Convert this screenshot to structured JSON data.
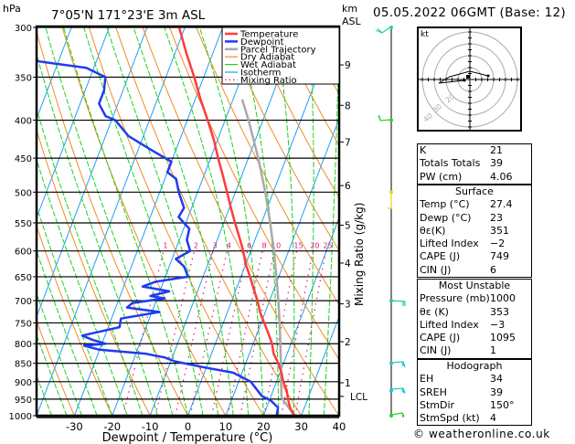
{
  "header": {
    "pressure_unit": "hPa",
    "location": "7°05'N  171°23'E  3m  ASL",
    "km_label_line1": "km",
    "km_label_line2": "ASL",
    "date_title": "05.05.2022  06GMT  (Base: 12)"
  },
  "chart_data": {
    "type": "line",
    "title": "7°05'N 171°23'E 3m ASL",
    "subtitle": "05.05.2022 06GMT (Base: 12)",
    "xlabel": "Dewpoint / Temperature (°C)",
    "ylabel": "hPa",
    "y2label": "Mixing Ratio (g/kg)",
    "xlim": [
      -40,
      40
    ],
    "ylim": [
      1000,
      300
    ],
    "skew_per_log_decade_c": 75,
    "grid": true,
    "x_ticks": [
      -30,
      -20,
      -10,
      0,
      10,
      20,
      30,
      40
    ],
    "pressure_ticks": [
      300,
      350,
      400,
      450,
      500,
      550,
      600,
      650,
      700,
      750,
      800,
      850,
      900,
      950,
      1000
    ],
    "km_ticks": [
      {
        "label": "9",
        "p": 337
      },
      {
        "label": "8",
        "p": 382
      },
      {
        "label": "7",
        "p": 428
      },
      {
        "label": "6",
        "p": 490
      },
      {
        "label": "5",
        "p": 554
      },
      {
        "label": "4",
        "p": 623
      },
      {
        "label": "3",
        "p": 707
      },
      {
        "label": "2",
        "p": 795
      },
      {
        "label": "1",
        "p": 903
      },
      {
        "label": "LCL",
        "p": 942
      }
    ],
    "mixing_ratio_labels": [
      "1",
      "2",
      "3",
      "4",
      "6",
      "8",
      "10",
      "15",
      "20",
      "25"
    ],
    "legend": {
      "position": "top-right",
      "entries": [
        {
          "label": "Temperature",
          "color": "#ff3b3b"
        },
        {
          "label": "Dewpoint",
          "color": "#1e3cf0"
        },
        {
          "label": "Parcel Trajectory",
          "color": "#aaaaaa"
        },
        {
          "label": "Dry Adiabat",
          "color": "#f08c28"
        },
        {
          "label": "Wet Adiabat",
          "color": "#1ed21e"
        },
        {
          "label": "Isotherm",
          "color": "#1ea0f0"
        },
        {
          "label": "Mixing Ratio",
          "color": "#e6147d"
        }
      ]
    },
    "series": [
      {
        "name": "Temperature",
        "color": "#ff3b3b",
        "points": [
          [
            1000,
            28.2
          ],
          [
            975,
            26.2
          ],
          [
            950,
            24.8
          ],
          [
            925,
            23.6
          ],
          [
            900,
            21.8
          ],
          [
            875,
            20.4
          ],
          [
            850,
            18.6
          ],
          [
            825,
            16.4
          ],
          [
            800,
            15.0
          ],
          [
            775,
            13.0
          ],
          [
            750,
            10.8
          ],
          [
            725,
            8.6
          ],
          [
            700,
            6.8
          ],
          [
            675,
            4.6
          ],
          [
            650,
            2.4
          ],
          [
            625,
            0.0
          ],
          [
            600,
            -2.0
          ],
          [
            575,
            -4.4
          ],
          [
            550,
            -7.0
          ],
          [
            525,
            -9.6
          ],
          [
            500,
            -12.2
          ],
          [
            475,
            -15.0
          ],
          [
            450,
            -18.0
          ],
          [
            425,
            -21.0
          ],
          [
            400,
            -24.6
          ],
          [
            375,
            -28.6
          ],
          [
            350,
            -32.5
          ],
          [
            325,
            -37.0
          ],
          [
            300,
            -41.5
          ]
        ]
      },
      {
        "name": "Dewpoint",
        "color": "#1e3cf0",
        "points": [
          [
            1000,
            23.5
          ],
          [
            975,
            23.0
          ],
          [
            955,
            20.5
          ],
          [
            940,
            17.5
          ],
          [
            900,
            13.2
          ],
          [
            875,
            7.6
          ],
          [
            860,
            -1.0
          ],
          [
            845,
            -9.0
          ],
          [
            835,
            -12.0
          ],
          [
            825,
            -17.5
          ],
          [
            815,
            -30.0
          ],
          [
            805,
            -34.5
          ],
          [
            800,
            -29.0
          ],
          [
            790,
            -33.0
          ],
          [
            780,
            -36.0
          ],
          [
            760,
            -27.0
          ],
          [
            740,
            -27.5
          ],
          [
            725,
            -18.0
          ],
          [
            715,
            -27.0
          ],
          [
            705,
            -26.0
          ],
          [
            695,
            -18.0
          ],
          [
            690,
            -22.0
          ],
          [
            680,
            -17.5
          ],
          [
            670,
            -25.0
          ],
          [
            660,
            -22.0
          ],
          [
            650,
            -14.0
          ],
          [
            630,
            -16.0
          ],
          [
            615,
            -19.0
          ],
          [
            600,
            -16.0
          ],
          [
            580,
            -18.0
          ],
          [
            560,
            -18.5
          ],
          [
            550,
            -20.5
          ],
          [
            540,
            -22.5
          ],
          [
            525,
            -22.0
          ],
          [
            500,
            -25.0
          ],
          [
            480,
            -27.0
          ],
          [
            470,
            -30.0
          ],
          [
            455,
            -30.0
          ],
          [
            440,
            -36.0
          ],
          [
            420,
            -44.0
          ],
          [
            400,
            -49.0
          ],
          [
            395,
            -52.0
          ],
          [
            380,
            -55.0
          ],
          [
            365,
            -55.0
          ],
          [
            350,
            -56.0
          ],
          [
            340,
            -62.0
          ],
          [
            330,
            -82.0
          ],
          [
            318,
            -88.0
          ],
          [
            300,
            -82.0
          ]
        ]
      },
      {
        "name": "Parcel Trajectory",
        "color": "#aaaaaa",
        "points": [
          [
            1000,
            28.2
          ],
          [
            975,
            25.8
          ],
          [
            950,
            23.4
          ],
          [
            942,
            22.8
          ],
          [
            900,
            21.2
          ],
          [
            850,
            19.3
          ],
          [
            800,
            17.2
          ],
          [
            750,
            14.9
          ],
          [
            700,
            12.3
          ],
          [
            650,
            9.4
          ],
          [
            600,
            6.1
          ],
          [
            550,
            2.3
          ],
          [
            500,
            -2.1
          ],
          [
            450,
            -7.4
          ],
          [
            400,
            -13.8
          ],
          [
            375,
            -17.6
          ]
        ]
      }
    ],
    "hodograph": {
      "unit_label": "kt",
      "ring_labels": [
        "10",
        "20",
        "30",
        "40"
      ]
    },
    "wind_profile": [
      {
        "p": 300,
        "color": "#2ad28c"
      },
      {
        "p": 400,
        "color": "#2ad22a"
      },
      {
        "p": 500,
        "color": "#e6d21e"
      },
      {
        "p": 700,
        "color": "#1ec8a0"
      },
      {
        "p": 850,
        "color": "#1ec8c8"
      },
      {
        "p": 925,
        "color": "#1ec8c8"
      },
      {
        "p": 1000,
        "color": "#28d21e"
      }
    ]
  },
  "indices": {
    "block1": [
      {
        "label": "K",
        "value": "21"
      },
      {
        "label": "Totals Totals",
        "value": "39"
      },
      {
        "label": "PW (cm)",
        "value": "4.06"
      }
    ],
    "surface": {
      "title": "Surface",
      "rows": [
        {
          "label": "Temp (°C)",
          "value": "27.4"
        },
        {
          "label": "Dewp (°C)",
          "value": "23"
        },
        {
          "label": "θε(K)",
          "value": "351"
        },
        {
          "label": "Lifted Index",
          "value": "−2"
        },
        {
          "label": "CAPE (J)",
          "value": "749"
        },
        {
          "label": "CIN (J)",
          "value": "6"
        }
      ]
    },
    "most_unstable": {
      "title": "Most Unstable",
      "rows": [
        {
          "label": "Pressure (mb)",
          "value": "1000"
        },
        {
          "label": "θε (K)",
          "value": "353"
        },
        {
          "label": "Lifted Index",
          "value": "−3"
        },
        {
          "label": "CAPE (J)",
          "value": "1095"
        },
        {
          "label": "CIN (J)",
          "value": "1"
        }
      ]
    },
    "hodograph": {
      "title": "Hodograph",
      "rows": [
        {
          "label": "EH",
          "value": "34"
        },
        {
          "label": "SREH",
          "value": "39"
        },
        {
          "label": "StmDir",
          "value": "150°"
        },
        {
          "label": "StmSpd (kt)",
          "value": "4"
        }
      ]
    }
  },
  "footer": {
    "copyright": "© weatheronline.co.uk"
  }
}
